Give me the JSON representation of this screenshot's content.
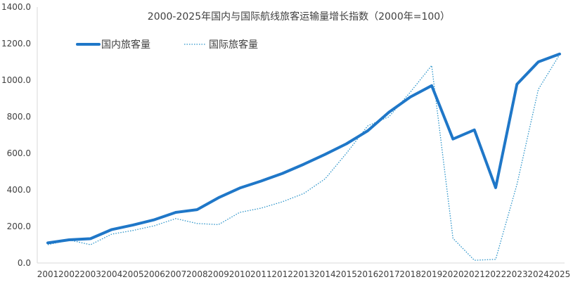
{
  "chart_data": {
    "type": "line",
    "title": "2000-2025年国内与国际航线旅客运输量增长指数（2000年=100）",
    "xlabel": "",
    "ylabel": "",
    "ylim": [
      0,
      1400
    ],
    "yticks": [
      "0.0",
      "200.0",
      "400.0",
      "600.0",
      "800.0",
      "1000.0",
      "1200.0",
      "1400.0"
    ],
    "categories": [
      "2001",
      "2002",
      "2003",
      "2004",
      "2005",
      "2006",
      "2007",
      "2008",
      "2009",
      "2010",
      "2011",
      "2012",
      "2013",
      "2014",
      "2015",
      "2016",
      "2017",
      "2018",
      "2019",
      "2020",
      "2021",
      "2022",
      "2023",
      "2024",
      "2025"
    ],
    "grid": false,
    "legend_position": "top-left",
    "series": [
      {
        "name": "国内旅客量",
        "color": "#1f77c8",
        "style": "solid-thick",
        "values": [
          110,
          127,
          133,
          183,
          208,
          237,
          277,
          292,
          357,
          410,
          448,
          490,
          540,
          594,
          652,
          723,
          825,
          908,
          970,
          678,
          728,
          412,
          978,
          1100,
          1143
        ]
      },
      {
        "name": "国际旅客量",
        "color": "#2a93c9",
        "style": "dotted",
        "values": [
          100,
          126,
          100,
          158,
          178,
          204,
          243,
          216,
          210,
          277,
          300,
          335,
          380,
          460,
          600,
          750,
          800,
          935,
          1080,
          135,
          15,
          20,
          430,
          950,
          1140
        ]
      }
    ]
  }
}
